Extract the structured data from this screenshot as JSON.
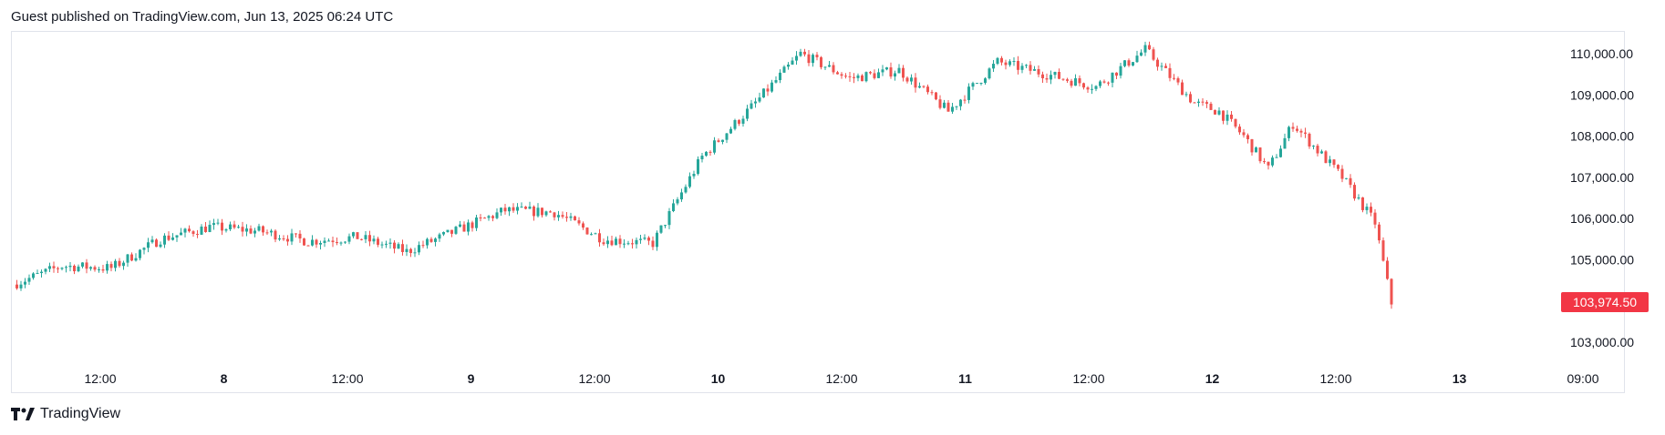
{
  "header": {
    "text": "Guest published on TradingView.com, Jun 13, 2025 06:24 UTC"
  },
  "footer": {
    "brand": "TradingView",
    "logo_icon": "tradingview-logo-icon"
  },
  "colors": {
    "up": "#26a69a",
    "down": "#ef5350",
    "last_price_bg": "#f23645",
    "grid": "#e0e3eb",
    "text": "#131722"
  },
  "chart_data": {
    "type": "candlestick",
    "title": "",
    "ylim": [
      102600,
      110500
    ],
    "y_ticks": [
      "110,000.00",
      "109,000.00",
      "108,000.00",
      "107,000.00",
      "106,000.00",
      "105,000.00",
      "103,000.00"
    ],
    "y_tick_values": [
      110000,
      109000,
      108000,
      107000,
      106000,
      105000,
      103000
    ],
    "last_price": {
      "label": "103,974.50",
      "value": 103974.5
    },
    "x_ticks": [
      {
        "label": "12:00",
        "bold": false
      },
      {
        "label": "8",
        "bold": true
      },
      {
        "label": "12:00",
        "bold": false
      },
      {
        "label": "9",
        "bold": true
      },
      {
        "label": "12:00",
        "bold": false
      },
      {
        "label": "10",
        "bold": true
      },
      {
        "label": "12:00",
        "bold": false
      },
      {
        "label": "11",
        "bold": true
      },
      {
        "label": "12:00",
        "bold": false
      },
      {
        "label": "12",
        "bold": true
      },
      {
        "label": "12:00",
        "bold": false
      },
      {
        "label": "13",
        "bold": true
      },
      {
        "label": "09:00",
        "bold": false
      }
    ],
    "close_series_hours": [
      0,
      6,
      12,
      18,
      24,
      30,
      36,
      42,
      48,
      54,
      60,
      66,
      72,
      78,
      84,
      90,
      96,
      102,
      108,
      114,
      120,
      126,
      132,
      138,
      144,
      147,
      150,
      153,
      156,
      162,
      166,
      168
    ],
    "close_series_values": [
      104400,
      104850,
      104800,
      105500,
      105800,
      105700,
      105450,
      105550,
      105200,
      105700,
      106200,
      106150,
      105500,
      105400,
      107500,
      108700,
      110000,
      109400,
      109600,
      108600,
      109800,
      109500,
      109200,
      110100,
      108800,
      108600,
      108000,
      107200,
      108300,
      107000,
      105900,
      103950
    ]
  }
}
